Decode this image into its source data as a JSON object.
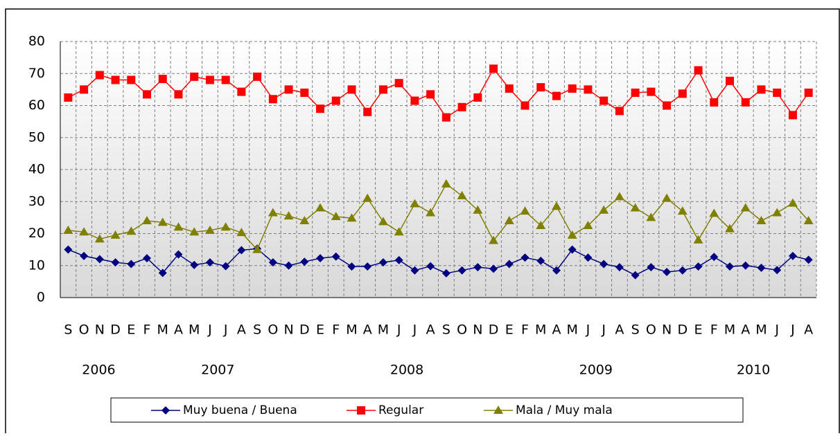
{
  "chart_data": {
    "type": "line",
    "categories": [
      "S",
      "O",
      "N",
      "D",
      "E",
      "F",
      "M",
      "A",
      "M",
      "J",
      "J",
      "A",
      "S",
      "O",
      "N",
      "D",
      "E",
      "F",
      "M",
      "A",
      "M",
      "J",
      "J",
      "A",
      "S",
      "O",
      "N",
      "D",
      "E",
      "F",
      "M",
      "A",
      "M",
      "J",
      "J",
      "A",
      "S",
      "O",
      "N",
      "D",
      "E",
      "F",
      "M",
      "A",
      "M",
      "J",
      "J",
      "A"
    ],
    "year_labels": [
      "2006",
      "2007",
      "2008",
      "2009",
      "2010"
    ],
    "series": [
      {
        "name": "Muy buena / Buena",
        "color": "#000080",
        "marker": "diamond",
        "values": [
          15,
          13,
          12,
          11,
          10.5,
          12.3,
          7.7,
          13.5,
          10.2,
          11,
          9.8,
          14.8,
          15.3,
          11,
          10,
          11.2,
          12.3,
          12.8,
          9.7,
          9.7,
          11,
          11.7,
          8.5,
          9.8,
          7.6,
          8.5,
          9.5,
          9,
          10.5,
          12.5,
          11.5,
          8.5,
          15,
          12.5,
          10.5,
          9.5,
          7,
          9.5,
          8,
          8.5,
          9.7,
          12.7,
          9.7,
          10,
          9.3,
          8.6,
          13,
          11.8
        ]
      },
      {
        "name": "Regular",
        "color": "#ff0000",
        "marker": "square",
        "values": [
          62.5,
          65,
          69.5,
          68,
          68,
          63.5,
          68.3,
          63.5,
          69,
          68,
          68,
          64.3,
          69,
          62,
          65,
          64,
          59,
          61.5,
          65,
          58,
          65,
          67,
          61.5,
          63.5,
          56.3,
          59.5,
          62.5,
          71.5,
          65.3,
          60,
          65.7,
          63,
          65.3,
          65,
          61.5,
          58.3,
          64,
          64.3,
          60,
          63.7,
          71,
          61,
          67.7,
          61,
          65,
          64,
          57,
          64
        ]
      },
      {
        "name": "Mala / Muy mala",
        "color": "#808000",
        "marker": "triangle",
        "values": [
          21,
          20.5,
          18.3,
          19.5,
          20.7,
          24,
          23.5,
          22,
          20.5,
          21,
          22,
          20.3,
          15,
          26.5,
          25.5,
          24,
          28,
          25.3,
          24.8,
          31,
          23.7,
          20.5,
          29.3,
          26.5,
          35.5,
          31.8,
          27.3,
          17.8,
          24,
          27,
          22.5,
          28.5,
          19.5,
          22.5,
          27.3,
          31.5,
          28,
          25,
          31,
          27,
          18,
          26.3,
          21.5,
          28,
          24,
          26.5,
          29.5,
          24
        ]
      }
    ],
    "ylim": [
      0,
      80
    ],
    "yticks": [
      0,
      10,
      20,
      30,
      40,
      50,
      60,
      70,
      80
    ],
    "grid": true
  }
}
